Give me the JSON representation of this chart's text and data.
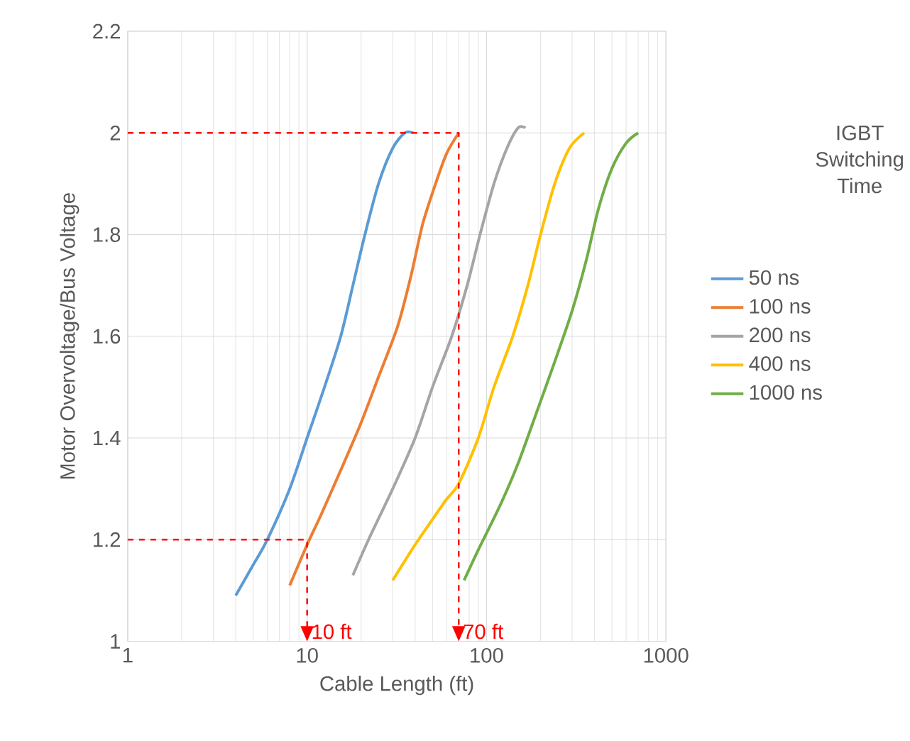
{
  "chart_data": {
    "type": "line",
    "xlabel": "Cable Length (ft)",
    "ylabel": "Motor Overvoltage/Bus Voltage",
    "legend_title": "IGBT Switching Time",
    "log": "x",
    "grid": true,
    "legend": "right",
    "marker": "none",
    "line_style": "solid",
    "xlim": [
      1,
      1000
    ],
    "xticks": [
      1,
      10,
      100,
      1000
    ],
    "ylim": [
      1,
      2.2
    ],
    "yticks": [
      1,
      1.2,
      1.4,
      1.6,
      1.8,
      2,
      2.2
    ],
    "series": [
      {
        "name": "50 ns",
        "color": "#5b9bd5",
        "x": [
          4,
          5,
          6,
          8,
          10,
          12.5,
          15.4,
          18,
          21,
          25,
          30,
          35,
          39
        ],
        "values": [
          1.09,
          1.15,
          1.2,
          1.3,
          1.4,
          1.5,
          1.6,
          1.7,
          1.8,
          1.9,
          1.97,
          2.0,
          2.0
        ]
      },
      {
        "name": "100 ns",
        "color": "#ed7d31",
        "x": [
          8,
          10,
          12,
          16,
          20,
          25,
          32,
          38,
          44,
          52,
          60,
          70
        ],
        "values": [
          1.11,
          1.19,
          1.25,
          1.35,
          1.43,
          1.52,
          1.62,
          1.72,
          1.82,
          1.9,
          1.96,
          2.0
        ]
      },
      {
        "name": "200 ns",
        "color": "#a5a5a5",
        "x": [
          18,
          22,
          30,
          40,
          50,
          64,
          78,
          92,
          110,
          130,
          150,
          165
        ],
        "values": [
          1.13,
          1.2,
          1.3,
          1.4,
          1.5,
          1.6,
          1.7,
          1.8,
          1.9,
          1.97,
          2.01,
          2.01
        ]
      },
      {
        "name": "400 ns",
        "color": "#ffc000",
        "x": [
          30,
          40,
          50,
          60,
          70,
          90,
          110,
          140,
          170,
          200,
          240,
          290,
          350
        ],
        "values": [
          1.12,
          1.19,
          1.24,
          1.28,
          1.31,
          1.4,
          1.5,
          1.6,
          1.7,
          1.8,
          1.9,
          1.97,
          2.0
        ]
      },
      {
        "name": "1000 ns",
        "color": "#70ad47",
        "x": [
          75,
          90,
          120,
          150,
          190,
          240,
          300,
          360,
          420,
          500,
          600,
          700
        ],
        "values": [
          1.12,
          1.18,
          1.27,
          1.35,
          1.45,
          1.55,
          1.65,
          1.75,
          1.85,
          1.93,
          1.98,
          2.0
        ]
      },
      {
        "color": "#ff0000",
        "line_style": "dashed",
        "x": [
          1,
          10,
          10
        ],
        "values": [
          1.2,
          1.2,
          1
        ]
      },
      {
        "color": "#ff0000",
        "line_style": "dashed",
        "x": [
          1,
          70,
          70
        ],
        "values": [
          2,
          2,
          1
        ]
      }
    ],
    "annotations": [
      {
        "text": "10 ft",
        "x": 10,
        "y": 1
      },
      {
        "text": "70 ft",
        "x": 70,
        "y": 1
      }
    ]
  }
}
